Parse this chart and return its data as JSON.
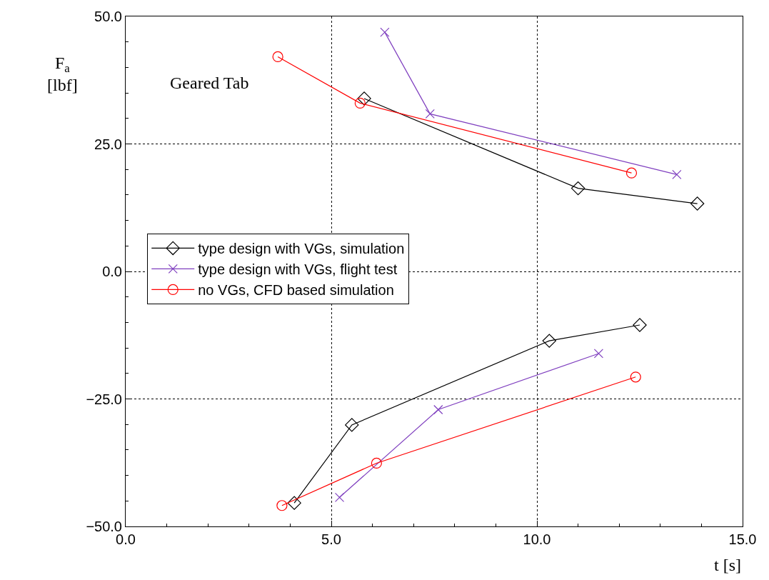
{
  "chart_data": {
    "type": "line",
    "xlabel": "t [s]",
    "ylabel": "F$_{a}$\n[lbf]",
    "annotations": [
      "Geared Tab"
    ],
    "series": [
      {
        "name": "type design with VGs, simulation",
        "color": "#000000",
        "marker": "diamond",
        "x": [
          5.8,
          11.0,
          13.9,
          null,
          4.1,
          5.5,
          10.3,
          12.5
        ],
        "values": [
          33.9,
          16.3,
          13.3,
          null,
          -45.4,
          -30.1,
          -13.6,
          -10.5
        ]
      },
      {
        "name": "type design with VGs, flight test",
        "color": "#7f3fbf",
        "marker": "cross",
        "x": [
          6.3,
          7.4,
          13.4,
          null,
          5.2,
          7.6,
          11.5
        ],
        "values": [
          46.9,
          30.9,
          19.0,
          null,
          -44.3,
          -27.1,
          -16.1
        ]
      },
      {
        "name": "no VGs, CFD based simulation",
        "color": "#ff0000",
        "marker": "circle",
        "x": [
          3.7,
          5.7,
          12.3,
          null,
          3.8,
          6.1,
          12.4
        ],
        "values": [
          42.1,
          33.0,
          19.3,
          null,
          -45.9,
          -37.6,
          -20.7
        ]
      }
    ],
    "xlim": [
      0,
      15
    ],
    "xticks": [
      {
        "value": 0,
        "label": "0.0"
      },
      {
        "value": 5,
        "label": "5.0"
      },
      {
        "value": 10,
        "label": "10.0"
      },
      {
        "value": 15,
        "label": "15.0"
      }
    ],
    "ylim": [
      -50,
      50
    ],
    "yticks": [
      {
        "value": -50,
        "label": "−50.0"
      },
      {
        "value": -25,
        "label": "−25.0"
      },
      {
        "value": 0,
        "label": "0.0"
      },
      {
        "value": 25,
        "label": "25.0"
      },
      {
        "value": 50,
        "label": "50.0"
      }
    ],
    "grid": true,
    "legend": "left",
    "line_style": "solid"
  }
}
